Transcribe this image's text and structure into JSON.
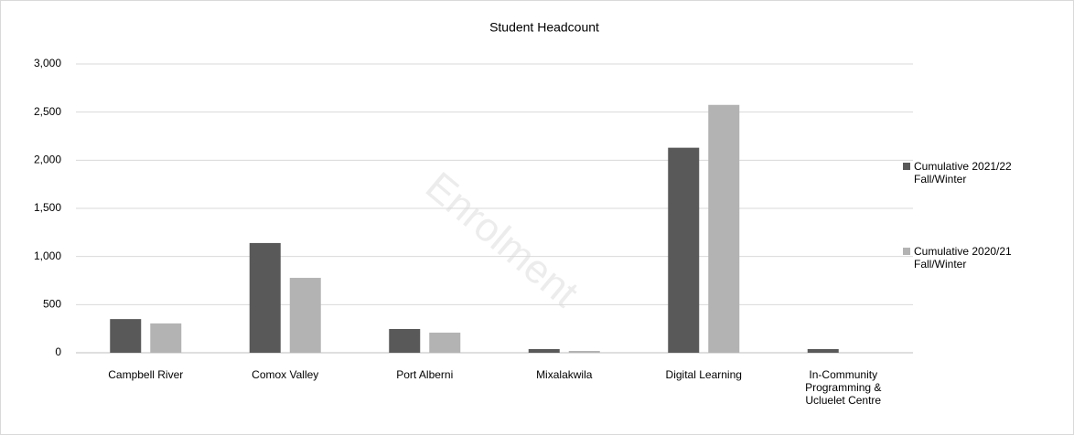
{
  "chart_data": {
    "type": "bar",
    "title": "Student Headcount",
    "watermark": "Enrolment",
    "categories": [
      "Campbell River",
      "Comox Valley",
      "Port Alberni",
      "Mixalakwila",
      "Digital Learning",
      "In-Community Programming & Ucluelet Centre"
    ],
    "series": [
      {
        "name": "Cumulative 2021/22 Fall/Winter",
        "color": "#595959",
        "values": [
          350,
          1140,
          247,
          38,
          2130,
          38
        ]
      },
      {
        "name": "Cumulative 2020/21 Fall/Winter",
        "color": "#b3b3b3",
        "values": [
          305,
          778,
          209,
          19,
          2575,
          0
        ]
      }
    ],
    "ylim": [
      0,
      3000
    ],
    "yticks": [
      0,
      {
        "value": 500,
        "label": "500"
      },
      {
        "value": 1000,
        "label": "1,000"
      },
      {
        "value": 1500,
        "label": "1,500"
      },
      {
        "value": 2000,
        "label": "2,000"
      },
      {
        "value": 2500,
        "label": "2,500"
      },
      {
        "value": 3000,
        "label": "3,000"
      }
    ],
    "grid": true,
    "legend": "right"
  }
}
